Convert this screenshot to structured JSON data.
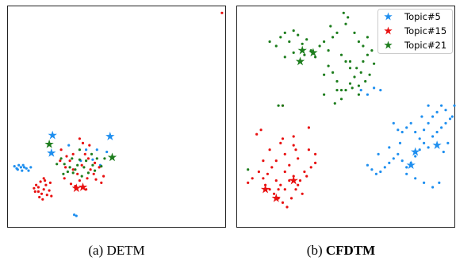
{
  "chart_data": [
    {
      "type": "scatter",
      "caption_prefix": "(a)",
      "caption_name": "DETM",
      "caption_bold": false,
      "xlim": [
        0,
        100
      ],
      "ylim": [
        0,
        100
      ],
      "series": [
        {
          "color": "#1f8fef",
          "points": [
            [
              3,
              27.5
            ],
            [
              4.5,
              26
            ],
            [
              5,
              28
            ],
            [
              6,
              27
            ],
            [
              6.5,
              25.5
            ],
            [
              7.5,
              27
            ],
            [
              8.5,
              26.5
            ],
            [
              9.5,
              25.5
            ],
            [
              10.5,
              27
            ],
            [
              4,
              26.5
            ],
            [
              7,
              28
            ],
            [
              31.5,
              5
            ],
            [
              30.5,
              5.5
            ],
            [
              41,
              35
            ],
            [
              45.5,
              34
            ],
            [
              39,
              30.5
            ],
            [
              28,
              37
            ],
            [
              36,
              35
            ],
            [
              42.5,
              28
            ],
            [
              33.5,
              30
            ]
          ],
          "stars": [
            [
              20.5,
              41.5
            ],
            [
              20,
              33.5
            ],
            [
              47,
              41
            ]
          ]
        },
        {
          "color": "#e81010",
          "points": [
            [
              98.5,
              97
            ],
            [
              12.5,
              16
            ],
            [
              14,
              18
            ],
            [
              15.5,
              15
            ],
            [
              16.5,
              17
            ],
            [
              13,
              19
            ],
            [
              15,
              20.5
            ],
            [
              17.5,
              19
            ],
            [
              18,
              14.5
            ],
            [
              16,
              12.5
            ],
            [
              14.5,
              13.5
            ],
            [
              19,
              16.5
            ],
            [
              12,
              17.5
            ],
            [
              17,
              21
            ],
            [
              19.5,
              20
            ],
            [
              20,
              14
            ],
            [
              14,
              16
            ],
            [
              16.5,
              22
            ],
            [
              26.5,
              27
            ],
            [
              28.5,
              30
            ],
            [
              30,
              26
            ],
            [
              32,
              24
            ],
            [
              34,
              28
            ],
            [
              35.5,
              33
            ],
            [
              37,
              31
            ],
            [
              38,
              26
            ],
            [
              39.5,
              24
            ],
            [
              36.5,
              22
            ],
            [
              33,
              21
            ],
            [
              31,
              18.5
            ],
            [
              29,
              19.5
            ],
            [
              36,
              17
            ],
            [
              34.5,
              38
            ],
            [
              37.5,
              37
            ],
            [
              33,
              40
            ],
            [
              27,
              32
            ],
            [
              24.5,
              35
            ],
            [
              40,
              29
            ],
            [
              42,
              27
            ],
            [
              44,
              23
            ],
            [
              43,
              20
            ],
            [
              40.5,
              21.5
            ],
            [
              30,
              33
            ],
            [
              26,
              22
            ],
            [
              24,
              30
            ]
          ],
          "stars": [
            [
              31.5,
              17.5
            ],
            [
              34.5,
              18
            ]
          ]
        },
        {
          "color": "#1d7d1d",
          "points": [
            [
              24.5,
              31
            ],
            [
              26,
              28.5
            ],
            [
              28.5,
              27
            ],
            [
              31,
              26
            ],
            [
              33,
              30.5
            ],
            [
              35,
              27
            ],
            [
              37,
              24.5
            ],
            [
              39,
              28
            ],
            [
              41,
              31
            ],
            [
              38.5,
              33
            ],
            [
              30,
              24.5
            ],
            [
              34,
              23
            ],
            [
              27.5,
              25
            ],
            [
              32,
              28
            ],
            [
              36,
              30
            ],
            [
              40,
              25.5
            ],
            [
              43,
              27.5
            ],
            [
              44.5,
              31
            ],
            [
              22.5,
              28.5
            ],
            [
              25.5,
              24
            ],
            [
              33,
              35
            ],
            [
              29.5,
              31
            ]
          ],
          "stars": [
            [
              19,
              37.5
            ],
            [
              48,
              31.5
            ]
          ]
        }
      ]
    },
    {
      "type": "scatter",
      "caption_prefix": "(b)",
      "caption_name": "CFDTM",
      "caption_bold": true,
      "xlim": [
        0,
        100
      ],
      "ylim": [
        0,
        100
      ],
      "legend_position": "top-right",
      "series": [
        {
          "name": "Topic#5",
          "color": "#1f8fef",
          "points": [
            [
              72,
              47
            ],
            [
              74,
              44
            ],
            [
              76,
              43
            ],
            [
              78,
              45
            ],
            [
              80,
              47
            ],
            [
              82,
              43
            ],
            [
              84,
              40
            ],
            [
              86,
              38
            ],
            [
              88,
              36
            ],
            [
              90,
              41
            ],
            [
              92,
              43
            ],
            [
              94,
              45
            ],
            [
              96,
              47
            ],
            [
              98,
              49
            ],
            [
              96,
              53
            ],
            [
              94,
              55
            ],
            [
              92,
              52
            ],
            [
              90,
              50
            ],
            [
              88,
              47
            ],
            [
              86,
              44
            ],
            [
              84,
              35
            ],
            [
              82,
              32
            ],
            [
              80,
              29
            ],
            [
              78,
              27
            ],
            [
              76,
              30
            ],
            [
              74,
              33
            ],
            [
              72,
              31
            ],
            [
              70,
              29
            ],
            [
              68,
              27
            ],
            [
              66,
              25
            ],
            [
              64,
              24
            ],
            [
              62,
              26
            ],
            [
              60,
              28
            ],
            [
              75,
              38
            ],
            [
              70,
              36
            ],
            [
              65,
              33
            ],
            [
              78,
              24
            ],
            [
              82,
              22
            ],
            [
              86,
              20
            ],
            [
              90,
              18
            ],
            [
              93,
              20
            ],
            [
              95,
              34
            ],
            [
              97,
              38
            ],
            [
              99,
              50
            ],
            [
              100,
              55
            ],
            [
              88,
              55
            ],
            [
              85,
              50
            ],
            [
              66,
              62
            ],
            [
              60,
              60
            ],
            [
              57,
              62
            ],
            [
              63,
              63
            ]
          ],
          "stars": [
            [
              82,
              34
            ],
            [
              80,
              28
            ],
            [
              92,
              37
            ]
          ]
        },
        {
          "name": "Topic#15",
          "color": "#e81010",
          "points": [
            [
              9,
              42
            ],
            [
              11,
              44
            ],
            [
              10,
              25
            ],
            [
              12,
              22
            ],
            [
              13,
              19
            ],
            [
              15,
              17
            ],
            [
              17,
              15
            ],
            [
              19,
              13
            ],
            [
              21,
              11
            ],
            [
              23,
              9
            ],
            [
              25,
              13
            ],
            [
              27,
              17
            ],
            [
              29,
              21
            ],
            [
              31,
              25
            ],
            [
              22,
              25
            ],
            [
              24,
              28
            ],
            [
              18,
              30
            ],
            [
              16,
              27
            ],
            [
              14,
              24
            ],
            [
              18,
              21
            ],
            [
              20,
              19
            ],
            [
              22,
              17
            ],
            [
              24,
              21
            ],
            [
              26,
              23
            ],
            [
              28,
              19
            ],
            [
              30,
              15
            ],
            [
              32,
              23
            ],
            [
              34,
              27
            ],
            [
              36,
              33
            ],
            [
              33,
              35
            ],
            [
              28,
              31
            ],
            [
              22,
              33
            ],
            [
              20,
              38
            ],
            [
              21,
              40
            ],
            [
              26,
              37
            ],
            [
              27,
              35
            ],
            [
              15,
              35
            ],
            [
              12,
              30
            ],
            [
              7,
              22
            ],
            [
              5,
              20
            ],
            [
              33,
              45
            ],
            [
              26,
              41
            ],
            [
              36,
              29
            ],
            [
              19,
              17
            ],
            [
              21,
              55
            ]
          ],
          "stars": [
            [
              13,
              17
            ],
            [
              18,
              13
            ],
            [
              26,
              21
            ]
          ]
        },
        {
          "name": "Topic#21",
          "color": "#1d7d1d",
          "points": [
            [
              20,
              86
            ],
            [
              22,
              88
            ],
            [
              24,
              84
            ],
            [
              26,
              89
            ],
            [
              28,
              87
            ],
            [
              30,
              83
            ],
            [
              32,
              85
            ],
            [
              34,
              80
            ],
            [
              36,
              77
            ],
            [
              38,
              82
            ],
            [
              40,
              84
            ],
            [
              42,
              80
            ],
            [
              44,
              86
            ],
            [
              46,
              88
            ],
            [
              48,
              78
            ],
            [
              50,
              75
            ],
            [
              52,
              72
            ],
            [
              54,
              68
            ],
            [
              52,
              65
            ],
            [
              50,
              62
            ],
            [
              48,
              58
            ],
            [
              46,
              66
            ],
            [
              44,
              70
            ],
            [
              42,
              73
            ],
            [
              40,
              69
            ],
            [
              46,
              62
            ],
            [
              45,
              56
            ],
            [
              48,
              62
            ],
            [
              52,
              75
            ],
            [
              55,
              72
            ],
            [
              57,
              70
            ],
            [
              58,
              75
            ],
            [
              60,
              78
            ],
            [
              62,
              80
            ],
            [
              63,
              74
            ],
            [
              61,
              69
            ],
            [
              59,
              66
            ],
            [
              56,
              64
            ],
            [
              53,
              63
            ],
            [
              50,
              92
            ],
            [
              51,
              95
            ],
            [
              49,
              97
            ],
            [
              31,
              78
            ],
            [
              26,
              79
            ],
            [
              22,
              77
            ],
            [
              18,
              82
            ],
            [
              15,
              84
            ],
            [
              54,
              88
            ],
            [
              56,
              84
            ],
            [
              58,
              82
            ],
            [
              60,
              86
            ],
            [
              19,
              55
            ],
            [
              21,
              55
            ],
            [
              5,
              26
            ],
            [
              40,
              60
            ],
            [
              56,
              60
            ],
            [
              43,
              91
            ]
          ],
          "stars": [
            [
              30,
              80
            ],
            [
              29,
              75
            ],
            [
              35,
              79
            ]
          ]
        }
      ]
    }
  ]
}
